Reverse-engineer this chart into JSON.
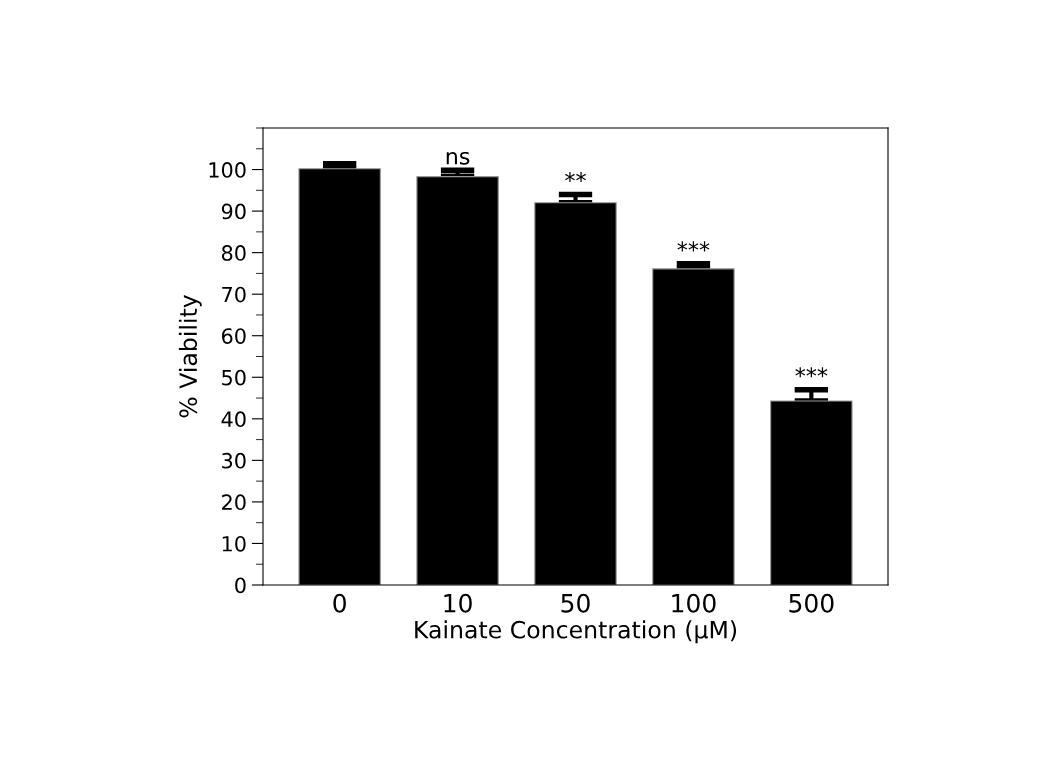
{
  "chart_data": {
    "type": "bar",
    "xlabel": "Kainate Concentration (µM)",
    "ylabel": "% Viability",
    "categories": [
      "0",
      "10",
      "50",
      "100",
      "500"
    ],
    "values": [
      100.2,
      98.3,
      92.0,
      76.1,
      44.3
    ],
    "errors": [
      1.2,
      1.5,
      2.0,
      1.2,
      2.7
    ],
    "color": "#000000",
    "ylim": [
      0,
      110
    ],
    "yticks": [
      0,
      10,
      20,
      30,
      40,
      50,
      60,
      70,
      80,
      90,
      100
    ],
    "grid": false,
    "legend": false,
    "annotations": [
      {
        "text": "ns",
        "x": "10",
        "y": 99.8
      },
      {
        "text": "**",
        "x": "50",
        "y": 94.0
      },
      {
        "text": "***",
        "x": "100",
        "y": 77.3
      },
      {
        "text": "***",
        "x": "500",
        "y": 47.0
      }
    ]
  }
}
